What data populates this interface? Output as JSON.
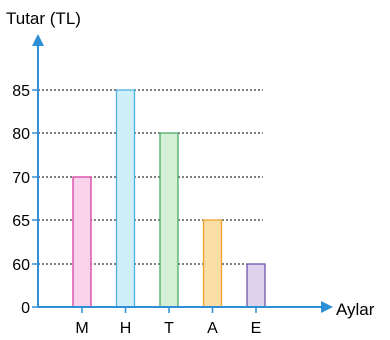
{
  "chart_data": {
    "type": "bar",
    "ylabel": "Tutar (TL)",
    "xlabel": "Aylar",
    "categories": [
      "M",
      "H",
      "T",
      "A",
      "E"
    ],
    "values": [
      70,
      85,
      80,
      65,
      60
    ],
    "yticks": [
      0,
      60,
      65,
      70,
      80,
      85
    ],
    "bar_colors": [
      {
        "fill": "#f9d2ec",
        "stroke": "#d63fa0"
      },
      {
        "fill": "#cfeffb",
        "stroke": "#4fb2e0"
      },
      {
        "fill": "#d3efd6",
        "stroke": "#4aab63"
      },
      {
        "fill": "#fbdda6",
        "stroke": "#f0a230"
      },
      {
        "fill": "#ddd3ec",
        "stroke": "#6d57a8"
      }
    ],
    "axis_color": "#2e8fd6",
    "grid": "dotted horizontal lines at tick values"
  }
}
